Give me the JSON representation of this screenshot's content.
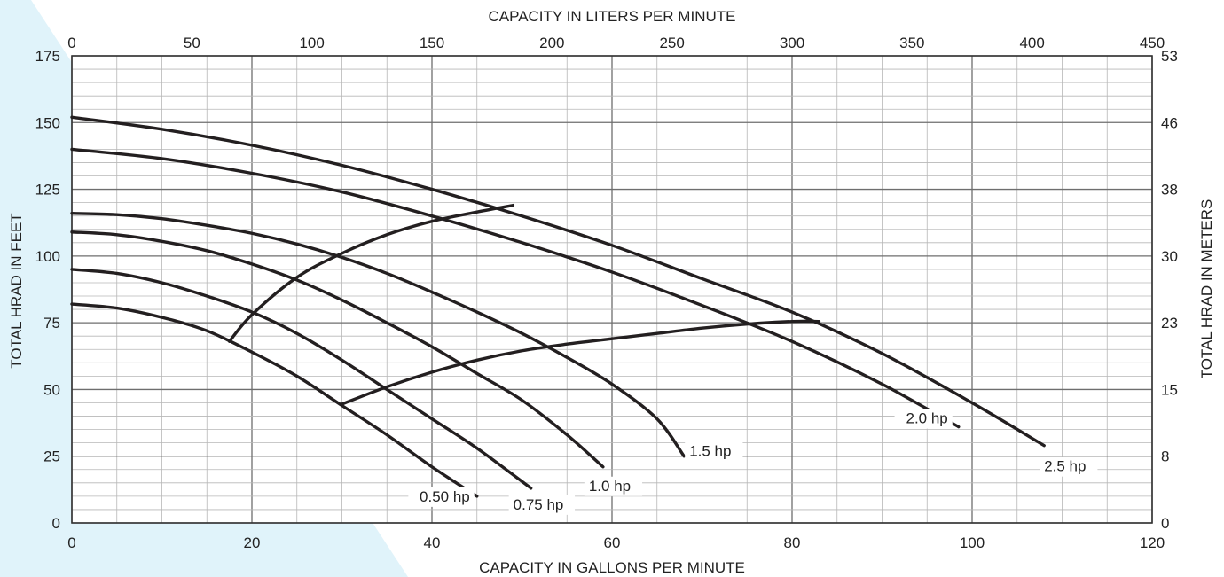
{
  "chart_data": {
    "type": "line",
    "title": "",
    "xlabel": "CAPACITY IN GALLONS PER MINUTE",
    "ylabel": "TOTAL HRAD IN FEET",
    "x2label": "CAPACITY IN LITERS PER MINUTE",
    "y2label": "TOTAL HRAD IN METERS",
    "xlim": [
      0,
      120
    ],
    "ylim": [
      0,
      175
    ],
    "x2lim": [
      0,
      450
    ],
    "y2lim": [
      0,
      53
    ],
    "x_ticks": [
      0,
      20,
      40,
      60,
      80,
      100,
      120
    ],
    "y_ticks": [
      0,
      25,
      50,
      75,
      100,
      125,
      150,
      175
    ],
    "x2_ticks": [
      0,
      50,
      100,
      150,
      200,
      250,
      300,
      350,
      400,
      450
    ],
    "y2_ticks": [
      "0",
      "8",
      "15",
      "23",
      "30",
      "38",
      "46",
      "53"
    ],
    "grid": true,
    "series": [
      {
        "name": "0.50 hp",
        "x": [
          0,
          5,
          10,
          15,
          20,
          25,
          30,
          35,
          40,
          45
        ],
        "y": [
          82,
          80.5,
          77,
          72,
          64,
          55,
          44,
          33,
          21,
          10
        ]
      },
      {
        "name": "0.75 hp",
        "x": [
          0,
          5,
          10,
          15,
          20,
          25,
          30,
          35,
          40,
          45,
          51
        ],
        "y": [
          95,
          93.5,
          90,
          85,
          79,
          71,
          61,
          50,
          39,
          28,
          13
        ]
      },
      {
        "name": "1.0 hp",
        "x": [
          0,
          5,
          10,
          15,
          20,
          25,
          30,
          35,
          40,
          45,
          50,
          55,
          59
        ],
        "y": [
          109,
          108,
          105.5,
          102,
          97,
          91,
          83.5,
          75,
          66,
          56,
          46,
          33,
          21
        ]
      },
      {
        "name": "1.5 hp",
        "x": [
          0,
          5,
          10,
          15,
          20,
          25,
          30,
          35,
          40,
          45,
          50,
          55,
          60,
          65,
          68
        ],
        "y": [
          116,
          115.5,
          114,
          111.5,
          108.5,
          104.5,
          99.5,
          93.5,
          86.5,
          79,
          71,
          62,
          52,
          39,
          25
        ]
      },
      {
        "name": "2.0 hp",
        "x": [
          0,
          10,
          20,
          30,
          40,
          50,
          60,
          70,
          80,
          90,
          98.5
        ],
        "y": [
          140,
          136.5,
          131,
          124,
          115,
          105,
          94,
          81.5,
          68,
          52,
          36
        ]
      },
      {
        "name": "2.5 hp",
        "x": [
          0,
          10,
          20,
          30,
          40,
          50,
          60,
          70,
          80,
          90,
          100,
          108
        ],
        "y": [
          152,
          147.5,
          141.5,
          134,
          125,
          115,
          104,
          91.5,
          79,
          63.5,
          45,
          29
        ]
      },
      {
        "name": "",
        "x": [
          17.5,
          20,
          25,
          30,
          35,
          40,
          45,
          49
        ],
        "y": [
          68,
          78,
          92,
          101,
          108,
          113,
          116.5,
          119
        ]
      },
      {
        "name": "",
        "x": [
          30,
          35,
          40,
          45,
          50,
          55,
          60,
          65,
          70,
          75,
          80,
          83
        ],
        "y": [
          44.5,
          51,
          56.5,
          61,
          64.5,
          67,
          69,
          71,
          73,
          74.5,
          75.5,
          75.5
        ]
      }
    ]
  },
  "colors": {
    "curve": "#231f20",
    "grid_minor": "#b7b7b7",
    "grid_major": "#6e6e6e",
    "background_accent": "#e0f3fa"
  }
}
